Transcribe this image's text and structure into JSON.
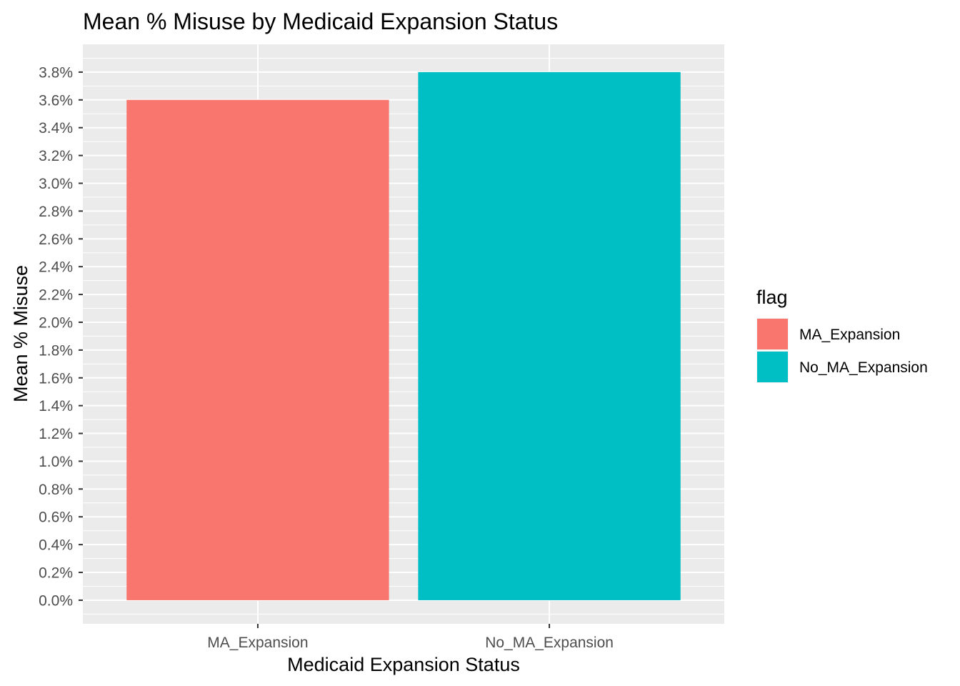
{
  "chart_data": {
    "type": "bar",
    "title": "Mean % Misuse by Medicaid Expansion Status",
    "xlabel": "Medicaid Expansion Status",
    "ylabel": "Mean % Misuse",
    "categories": [
      "MA_Expansion",
      "No_MA_Expansion"
    ],
    "values": [
      3.6,
      3.8
    ],
    "ylim": [
      -0.17,
      4.0
    ],
    "y_ticks": [
      0.0,
      0.2,
      0.4,
      0.6,
      0.8,
      1.0,
      1.2,
      1.4,
      1.6,
      1.8,
      2.0,
      2.2,
      2.4,
      2.6,
      2.8,
      3.0,
      3.2,
      3.4,
      3.6,
      3.8
    ],
    "y_tick_labels": [
      "0.0%",
      "0.2%",
      "0.4%",
      "0.6%",
      "0.8%",
      "1.0%",
      "1.2%",
      "1.4%",
      "1.6%",
      "1.8%",
      "2.0%",
      "2.2%",
      "2.4%",
      "2.6%",
      "2.8%",
      "3.0%",
      "3.2%",
      "3.4%",
      "3.6%",
      "3.8%"
    ],
    "colors": [
      "#F8766D",
      "#00BFC4"
    ],
    "panel_background": "#EBEBEB",
    "grid": true,
    "legend": {
      "title": "flag",
      "position": "right",
      "entries": [
        "MA_Expansion",
        "No_MA_Expansion"
      ]
    }
  }
}
